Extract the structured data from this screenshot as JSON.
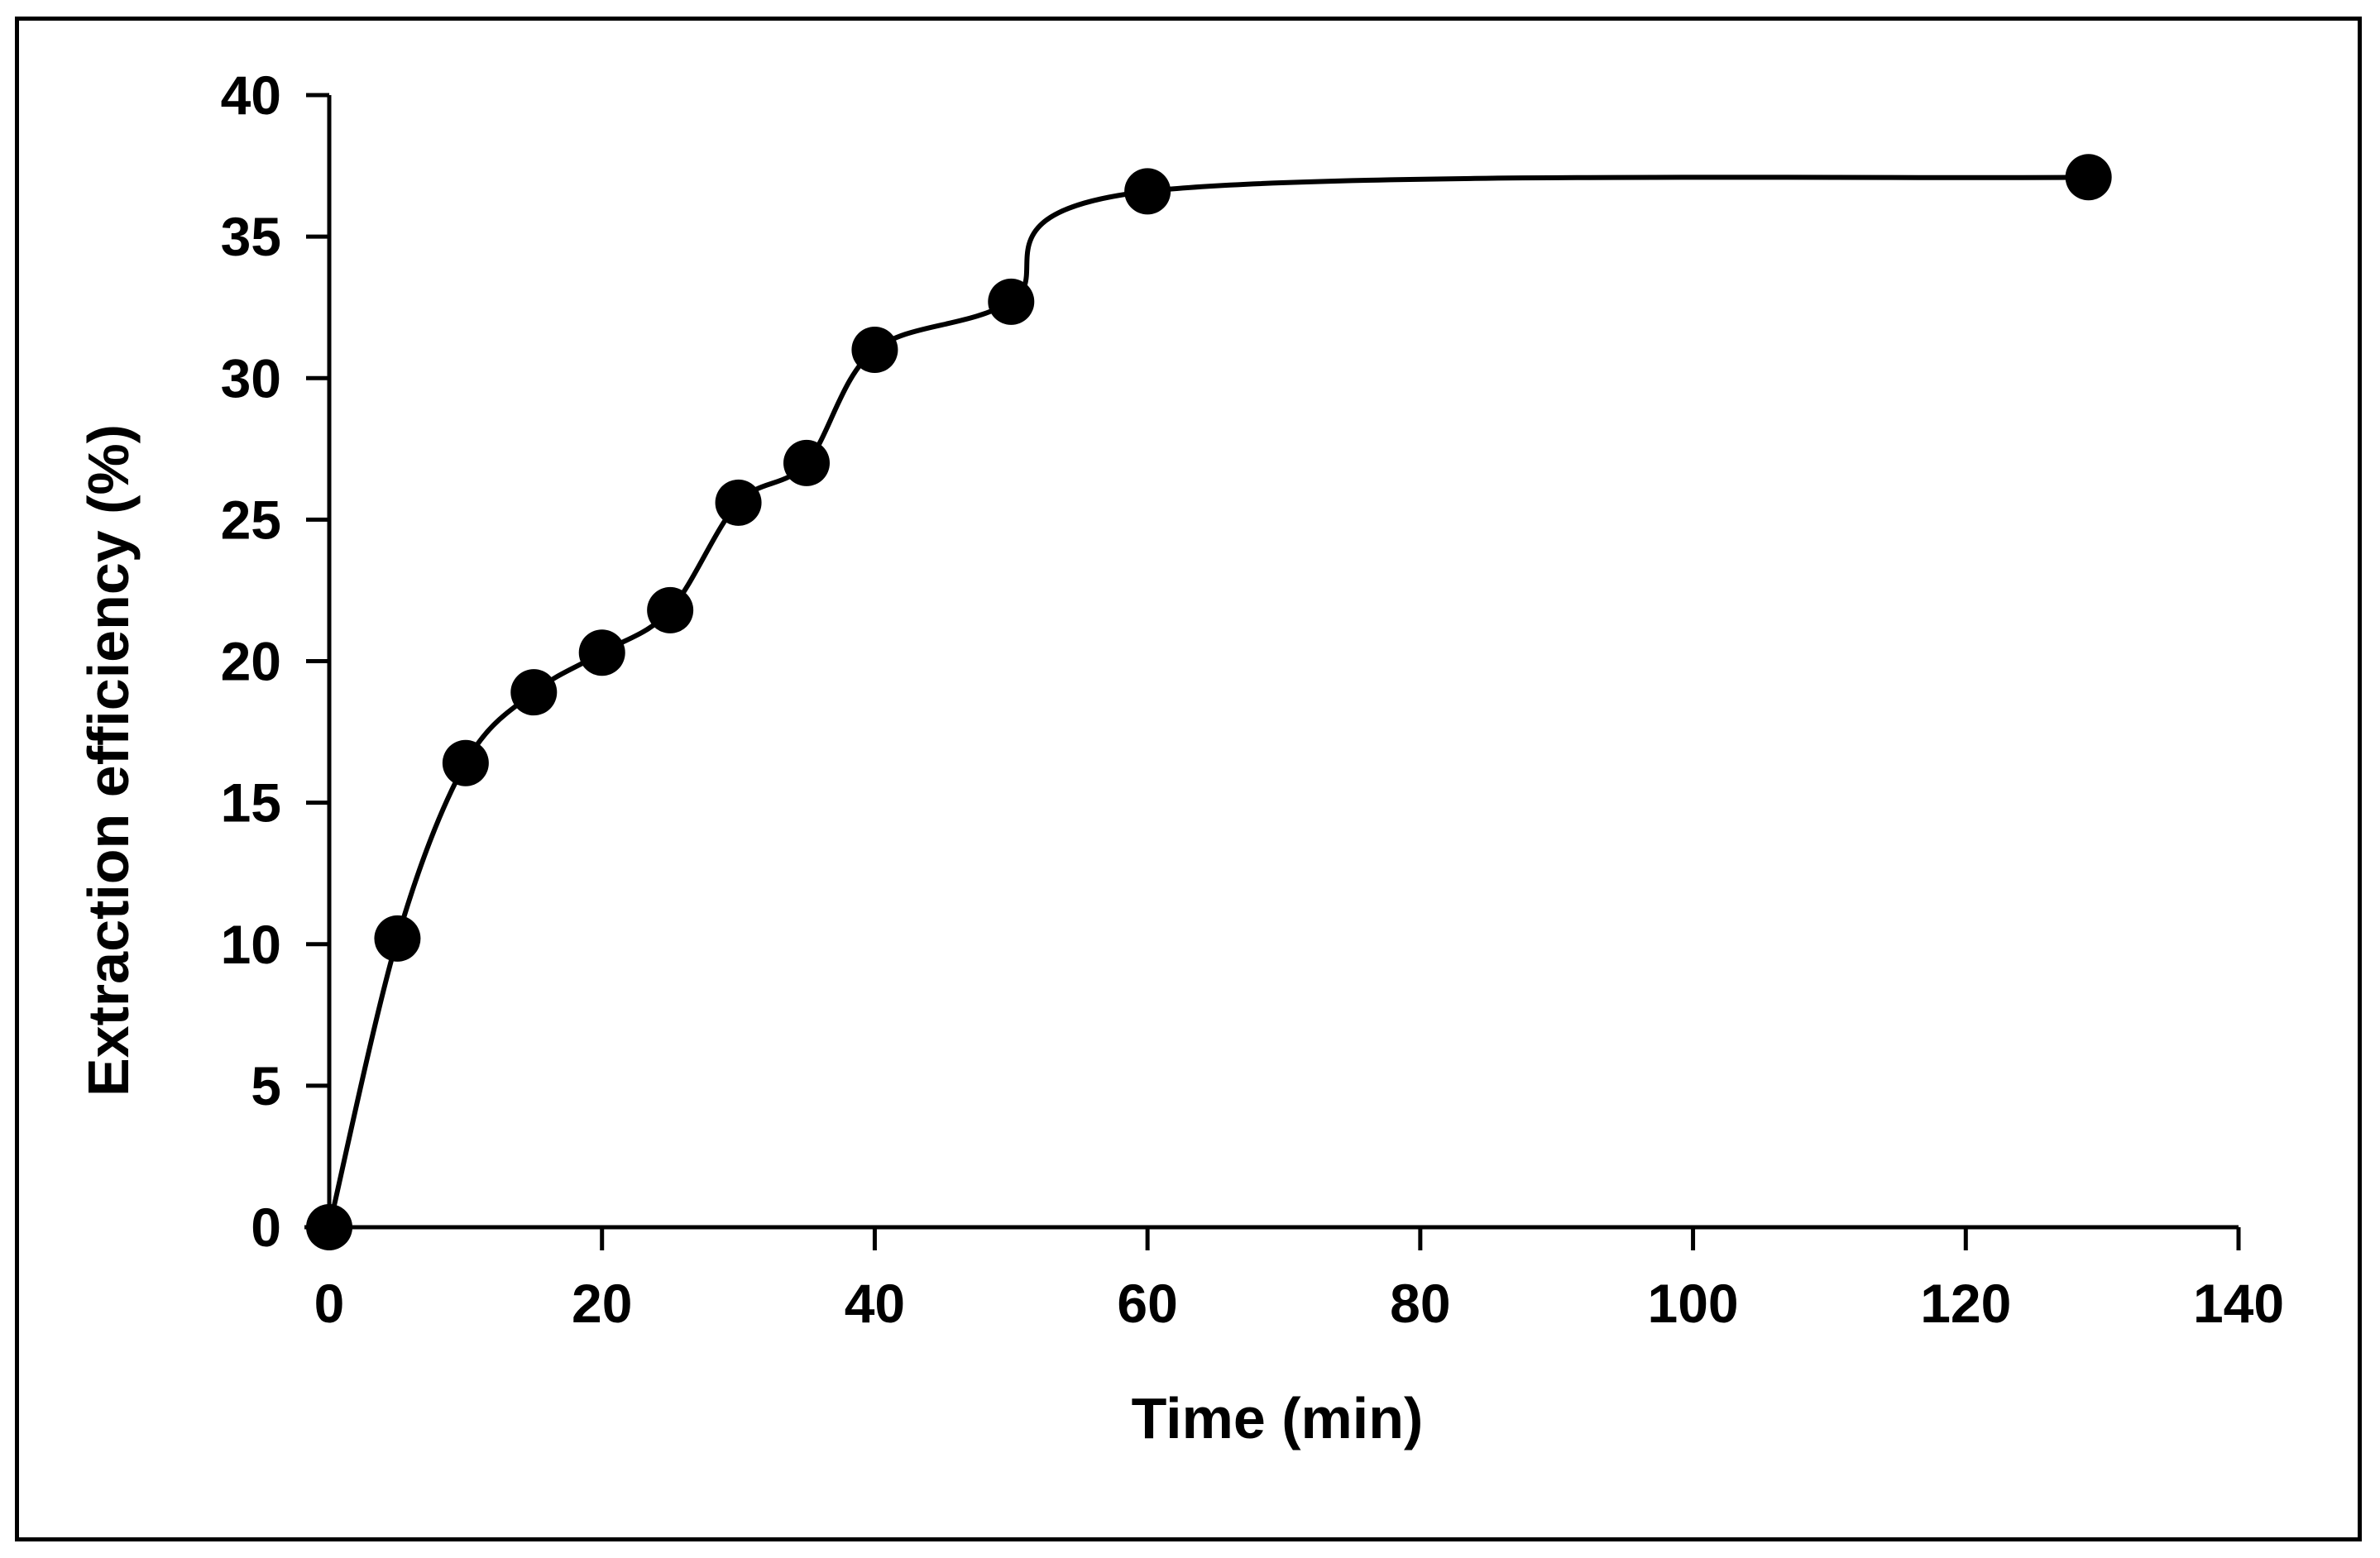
{
  "chart_data": {
    "type": "line",
    "title": "",
    "xlabel": "Time (min)",
    "ylabel": "Extraction efficiency (%)",
    "xlim": [
      0,
      140
    ],
    "ylim": [
      0,
      40
    ],
    "xticks": [
      "0",
      "20",
      "40",
      "60",
      "80",
      "100",
      "120",
      "140"
    ],
    "yticks": [
      "0",
      "5",
      "10",
      "15",
      "20",
      "25",
      "30",
      "35",
      "40"
    ],
    "grid": false,
    "legend": "none",
    "series": [
      {
        "name": "Extraction efficiency",
        "smooth": true,
        "marker": "circle",
        "color": "#000000",
        "x": [
          0,
          5,
          10,
          15,
          20,
          25,
          30,
          35,
          40,
          50,
          60,
          129
        ],
        "y": [
          0,
          10.2,
          16.4,
          18.9,
          20.3,
          21.8,
          25.6,
          27.0,
          31.0,
          32.7,
          36.6,
          37.1
        ]
      }
    ]
  }
}
